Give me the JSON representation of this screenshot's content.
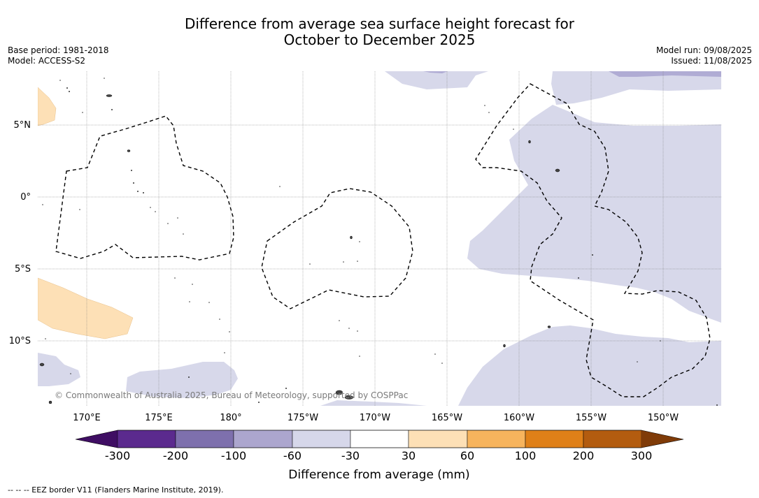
{
  "title": {
    "line1": "Difference from average sea surface height forecast for",
    "line2": "October to December 2025"
  },
  "meta_left": {
    "base_period": "Base period: 1981-2018",
    "model": "Model: ACCESS-S2"
  },
  "meta_right": {
    "model_run": "Model run: 09/08/2025",
    "issued": "Issued: 11/08/2025"
  },
  "map": {
    "lon_labels": [
      "170°E",
      "175°E",
      "180°",
      "175°W",
      "170°W",
      "165°W",
      "160°W",
      "155°W",
      "150°W"
    ],
    "lat_labels": [
      "5°N",
      "0°",
      "5°S",
      "10°S"
    ],
    "copyright": "© Commonwealth of Australia 2025, Bureau of Meteorology, supported by COSPPac",
    "colors": {
      "light_purple": "#d7d8ea",
      "mid_purple": "#b0acd4",
      "light_orange": "#fde0b6"
    }
  },
  "colorbar": {
    "title": "Difference from average (mm)",
    "tick_labels": [
      "-300",
      "-200",
      "-100",
      "-60",
      "-30",
      "30",
      "60",
      "100",
      "200",
      "300"
    ],
    "colors": [
      "#3f0e63",
      "#5b2a8e",
      "#7e70ad",
      "#aca6ce",
      "#d6d7ea",
      "#ffffff",
      "#fde0b6",
      "#f7b45d",
      "#df8018",
      "#b35c0f",
      "#7f3b08"
    ]
  },
  "footnote": "--  --  -- EEZ border V11 (Flanders Marine Institute, 2019)."
}
